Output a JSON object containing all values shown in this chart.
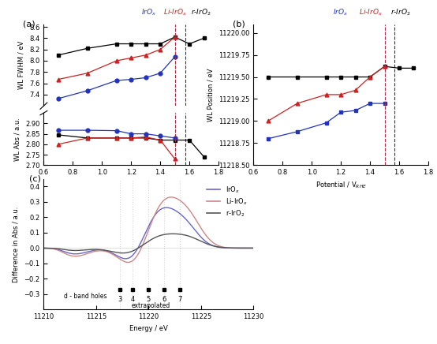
{
  "panel_a": {
    "pot_all": [
      0.7,
      0.9,
      1.1,
      1.2,
      1.3,
      1.4,
      1.5,
      1.6,
      1.7
    ],
    "pot_short": [
      0.7,
      0.9,
      1.1,
      1.2,
      1.3,
      1.4,
      1.5
    ],
    "fwhm_black": [
      8.1,
      8.22,
      8.3,
      8.3,
      8.3,
      8.3,
      8.42,
      8.3,
      8.4
    ],
    "fwhm_red": [
      7.67,
      7.78,
      8.0,
      8.05,
      8.1,
      8.2,
      8.42
    ],
    "fwhm_blue": [
      7.33,
      7.47,
      7.65,
      7.67,
      7.7,
      7.78,
      8.07
    ],
    "abs_black": [
      2.845,
      2.83,
      2.83,
      2.83,
      2.83,
      2.82,
      2.82,
      2.82,
      2.74
    ],
    "abs_red": [
      2.8,
      2.83,
      2.83,
      2.83,
      2.835,
      2.82,
      2.73
    ],
    "abs_blue": [
      2.867,
      2.867,
      2.865,
      2.85,
      2.85,
      2.84,
      2.83
    ],
    "vline_blue": 1.5,
    "vline_red": 1.5,
    "vline_black": 1.57,
    "xlim": [
      0.6,
      1.8
    ],
    "ylim_fwhm": [
      7.2,
      8.65
    ],
    "ylim_abs": [
      2.7,
      2.95
    ],
    "yticks_fwhm": [
      7.4,
      7.6,
      7.8,
      8.0,
      8.2,
      8.4,
      8.6
    ],
    "yticks_abs": [
      2.7,
      2.75,
      2.8,
      2.85,
      2.9
    ],
    "xticks": [
      0.6,
      0.8,
      1.0,
      1.2,
      1.4,
      1.6,
      1.8
    ],
    "xlabel": "Potential / V$_{RHE}$",
    "ylabel_fwhm": "WL FWHM / eV",
    "ylabel_abs": "WL Abs / a.u.",
    "label": "(a)"
  },
  "panel_b": {
    "pot_all": [
      0.7,
      0.9,
      1.1,
      1.2,
      1.3,
      1.4,
      1.5,
      1.6,
      1.7
    ],
    "pot_short": [
      0.7,
      0.9,
      1.1,
      1.2,
      1.3,
      1.4,
      1.5
    ],
    "pos_black": [
      11219.5,
      11219.5,
      11219.5,
      11219.5,
      11219.5,
      11219.5,
      11219.62,
      11219.6,
      11219.6
    ],
    "pos_red": [
      11219.0,
      11219.2,
      11219.3,
      11219.3,
      11219.35,
      11219.5,
      11219.62
    ],
    "pos_blue": [
      11218.8,
      11218.88,
      11218.98,
      11219.1,
      11219.12,
      11219.2,
      11219.2
    ],
    "vline_blue": 1.5,
    "vline_red": 1.5,
    "vline_black": 1.57,
    "xlim": [
      0.6,
      1.8
    ],
    "ylim": [
      11218.5,
      11220.1
    ],
    "yticks": [
      11218.5,
      11218.75,
      11219.0,
      11219.25,
      11219.5,
      11219.75,
      11220.0
    ],
    "xticks": [
      0.6,
      0.8,
      1.0,
      1.2,
      1.4,
      1.6,
      1.8
    ],
    "xlabel": "Potential / V$_{RHE}$",
    "ylabel": "WL Position / eV",
    "label": "(b)"
  },
  "panel_c": {
    "xlim": [
      11210,
      11230
    ],
    "ylim": [
      -0.4,
      0.45
    ],
    "xticks": [
      11210,
      11215,
      11220,
      11225,
      11230
    ],
    "yticks": [
      -0.3,
      -0.2,
      -0.1,
      0.0,
      0.1,
      0.2,
      0.3,
      0.4
    ],
    "vline_x": [
      11217.3,
      11218.5,
      11220.0,
      11221.5,
      11223.0
    ],
    "dband_x": [
      11217.3,
      11218.5,
      11220.0,
      11221.5,
      11223.0
    ],
    "dband_labels": [
      "3",
      "4",
      "5",
      "6",
      "7"
    ],
    "xlabel": "Energy / eV",
    "ylabel": "Difference in Abs / a.u.",
    "label": "(c)",
    "color_IrOx": "#6666cc",
    "color_LiIrOx": "#cc8888",
    "color_rIrO2": "#555555"
  },
  "colors": {
    "black": "#000000",
    "red": "#cc2222",
    "blue": "#2233bb",
    "IrOx_label": "#2233bb",
    "LiIrOx_label": "#cc2222",
    "rIrO2_label": "#000000"
  }
}
